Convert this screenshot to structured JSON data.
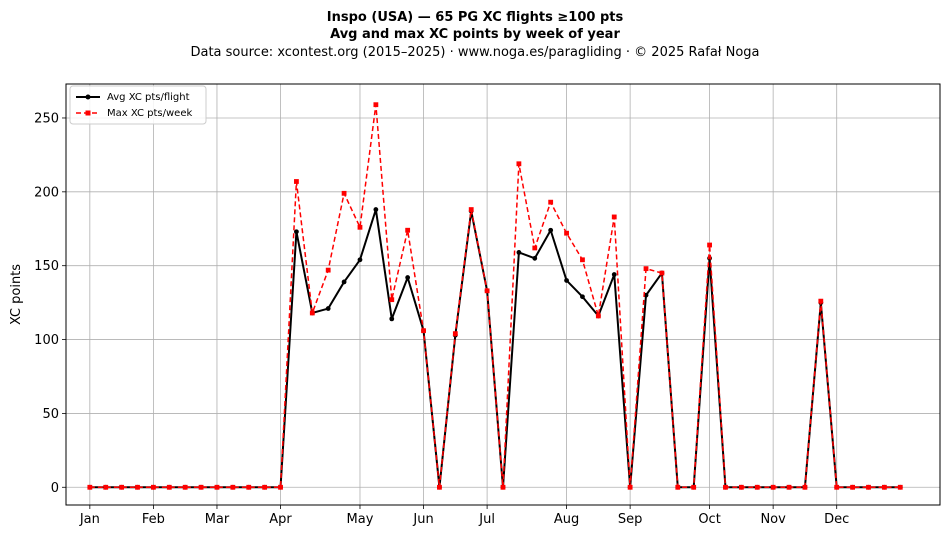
{
  "chart_data": {
    "type": "line",
    "title_line1": "Inspo (USA)  —  65 PG XC flights ≥100 pts",
    "title_line2": "Avg and max XC points by week of year",
    "subtitle": "Data source: xcontest.org (2015–2025)  ·  www.noga.es/paragliding  ·  © 2025 Rafał Noga",
    "xlabel": "",
    "ylabel": "XC points",
    "ylim": [
      -12,
      273
    ],
    "xlim": [
      -1.5,
      53.5
    ],
    "yticks": [
      0,
      50,
      100,
      150,
      200,
      250
    ],
    "x_ticks": [
      {
        "label": "Jan",
        "week": 0
      },
      {
        "label": "Feb",
        "week": 4
      },
      {
        "label": "Mar",
        "week": 8
      },
      {
        "label": "Apr",
        "week": 12
      },
      {
        "label": "May",
        "week": 17
      },
      {
        "label": "Jun",
        "week": 21
      },
      {
        "label": "Jul",
        "week": 25
      },
      {
        "label": "Aug",
        "week": 30
      },
      {
        "label": "Sep",
        "week": 34
      },
      {
        "label": "Oct",
        "week": 39
      },
      {
        "label": "Nov",
        "week": 43
      },
      {
        "label": "Dec",
        "week": 47
      }
    ],
    "grid": true,
    "legend_position": "top-left",
    "x": [
      0,
      1,
      2,
      3,
      4,
      5,
      6,
      7,
      8,
      9,
      10,
      11,
      12,
      13,
      14,
      15,
      16,
      17,
      18,
      19,
      20,
      21,
      22,
      23,
      24,
      25,
      26,
      27,
      28,
      29,
      30,
      31,
      32,
      33,
      34,
      35,
      36,
      37,
      38,
      39,
      40,
      41,
      42,
      43,
      44,
      45,
      46,
      47,
      48,
      49,
      50,
      51
    ],
    "series": [
      {
        "name": "Avg XC pts/flight",
        "color": "#000000",
        "style": "solid-circle",
        "values": [
          0,
          0,
          0,
          0,
          0,
          0,
          0,
          0,
          0,
          0,
          0,
          0,
          0,
          173,
          118,
          121,
          139,
          154,
          188,
          114,
          142,
          106,
          0,
          103,
          187,
          133,
          0,
          159,
          155,
          174,
          140,
          129,
          116,
          144,
          0,
          130,
          145,
          0,
          0,
          155,
          0,
          0,
          0,
          0,
          0,
          0,
          125,
          0,
          0,
          0,
          0,
          0
        ]
      },
      {
        "name": "Max XC pts/week",
        "color": "#ff0000",
        "style": "dashed-square",
        "values": [
          0,
          0,
          0,
          0,
          0,
          0,
          0,
          0,
          0,
          0,
          0,
          0,
          0,
          207,
          118,
          147,
          199,
          176,
          259,
          127,
          174,
          106,
          0,
          104,
          188,
          133,
          0,
          219,
          162,
          193,
          172,
          154,
          116,
          183,
          0,
          148,
          145,
          0,
          0,
          164,
          0,
          0,
          0,
          0,
          0,
          0,
          126,
          0,
          0,
          0,
          0,
          0
        ]
      }
    ]
  }
}
